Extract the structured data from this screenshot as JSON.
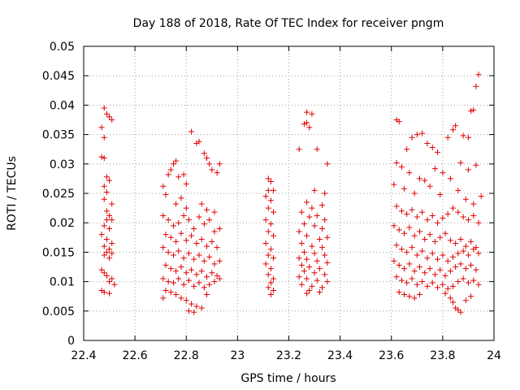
{
  "chart_data": {
    "type": "scatter",
    "title": "Day 188 of 2018, Rate Of TEC Index for receiver pngm",
    "xlabel": "GPS time / hours",
    "ylabel": "ROTI / TECUs",
    "xlim": [
      22.4,
      24
    ],
    "ylim": [
      0,
      0.05
    ],
    "xticks": [
      "22.4",
      "22.6",
      "22.8",
      "23",
      "23.2",
      "23.4",
      "23.6",
      "23.8",
      "24"
    ],
    "yticks": [
      "0",
      "0.005",
      "0.01",
      "0.015",
      "0.02",
      "0.025",
      "0.03",
      "0.035",
      "0.04",
      "0.045",
      "0.05"
    ],
    "grid": true,
    "marker": "+",
    "color": "#e00000",
    "points": [
      [
        22.48,
        0.0395
      ],
      [
        22.49,
        0.0385
      ],
      [
        22.5,
        0.038
      ],
      [
        22.51,
        0.0375
      ],
      [
        22.47,
        0.0362
      ],
      [
        22.48,
        0.0345
      ],
      [
        22.47,
        0.0312
      ],
      [
        22.48,
        0.031
      ],
      [
        22.49,
        0.0278
      ],
      [
        22.5,
        0.0272
      ],
      [
        22.48,
        0.0262
      ],
      [
        22.49,
        0.0252
      ],
      [
        22.48,
        0.024
      ],
      [
        22.51,
        0.0232
      ],
      [
        22.49,
        0.022
      ],
      [
        22.5,
        0.0212
      ],
      [
        22.49,
        0.0205
      ],
      [
        22.51,
        0.0205
      ],
      [
        22.48,
        0.0195
      ],
      [
        22.5,
        0.019
      ],
      [
        22.47,
        0.018
      ],
      [
        22.49,
        0.0172
      ],
      [
        22.51,
        0.0165
      ],
      [
        22.48,
        0.016
      ],
      [
        22.5,
        0.0155
      ],
      [
        22.49,
        0.015
      ],
      [
        22.51,
        0.0148
      ],
      [
        22.48,
        0.0145
      ],
      [
        22.5,
        0.014
      ],
      [
        22.47,
        0.012
      ],
      [
        22.48,
        0.0115
      ],
      [
        22.49,
        0.011
      ],
      [
        22.51,
        0.0105
      ],
      [
        22.5,
        0.01
      ],
      [
        22.52,
        0.0095
      ],
      [
        22.47,
        0.0085
      ],
      [
        22.48,
        0.0082
      ],
      [
        22.5,
        0.008
      ],
      [
        22.71,
        0.0262
      ],
      [
        22.72,
        0.0248
      ],
      [
        22.73,
        0.0282
      ],
      [
        22.74,
        0.029
      ],
      [
        22.75,
        0.03
      ],
      [
        22.76,
        0.0305
      ],
      [
        22.77,
        0.0278
      ],
      [
        22.79,
        0.0282
      ],
      [
        22.8,
        0.0266
      ],
      [
        22.82,
        0.0355
      ],
      [
        22.84,
        0.0335
      ],
      [
        22.85,
        0.0338
      ],
      [
        22.87,
        0.0318
      ],
      [
        22.88,
        0.031
      ],
      [
        22.89,
        0.03
      ],
      [
        22.9,
        0.029
      ],
      [
        22.92,
        0.0285
      ],
      [
        22.93,
        0.03
      ],
      [
        22.78,
        0.0242
      ],
      [
        22.76,
        0.0232
      ],
      [
        22.8,
        0.0225
      ],
      [
        22.86,
        0.0232
      ],
      [
        22.88,
        0.0222
      ],
      [
        22.91,
        0.0218
      ],
      [
        22.71,
        0.0212
      ],
      [
        22.73,
        0.0205
      ],
      [
        22.75,
        0.0195
      ],
      [
        22.77,
        0.02
      ],
      [
        22.79,
        0.0212
      ],
      [
        22.81,
        0.0205
      ],
      [
        22.83,
        0.019
      ],
      [
        22.85,
        0.021
      ],
      [
        22.87,
        0.0198
      ],
      [
        22.89,
        0.0205
      ],
      [
        22.91,
        0.0185
      ],
      [
        22.93,
        0.019
      ],
      [
        22.72,
        0.018
      ],
      [
        22.74,
        0.0175
      ],
      [
        22.76,
        0.0168
      ],
      [
        22.78,
        0.0182
      ],
      [
        22.8,
        0.017
      ],
      [
        22.82,
        0.0178
      ],
      [
        22.84,
        0.0165
      ],
      [
        22.86,
        0.0172
      ],
      [
        22.88,
        0.016
      ],
      [
        22.9,
        0.0168
      ],
      [
        22.92,
        0.0158
      ],
      [
        22.71,
        0.0158
      ],
      [
        22.73,
        0.015
      ],
      [
        22.75,
        0.0145
      ],
      [
        22.77,
        0.0152
      ],
      [
        22.79,
        0.014
      ],
      [
        22.81,
        0.0148
      ],
      [
        22.83,
        0.0138
      ],
      [
        22.85,
        0.0145
      ],
      [
        22.87,
        0.0135
      ],
      [
        22.89,
        0.0142
      ],
      [
        22.91,
        0.013
      ],
      [
        22.93,
        0.0135
      ],
      [
        22.72,
        0.0128
      ],
      [
        22.74,
        0.0122
      ],
      [
        22.76,
        0.0118
      ],
      [
        22.78,
        0.0125
      ],
      [
        22.8,
        0.0115
      ],
      [
        22.82,
        0.012
      ],
      [
        22.84,
        0.0112
      ],
      [
        22.86,
        0.0118
      ],
      [
        22.88,
        0.0108
      ],
      [
        22.9,
        0.0115
      ],
      [
        22.92,
        0.011
      ],
      [
        22.71,
        0.0105
      ],
      [
        22.73,
        0.01
      ],
      [
        22.75,
        0.0098
      ],
      [
        22.77,
        0.0105
      ],
      [
        22.79,
        0.0095
      ],
      [
        22.81,
        0.0102
      ],
      [
        22.83,
        0.0092
      ],
      [
        22.85,
        0.0098
      ],
      [
        22.87,
        0.009
      ],
      [
        22.89,
        0.0095
      ],
      [
        22.91,
        0.01
      ],
      [
        22.93,
        0.0105
      ],
      [
        22.72,
        0.0085
      ],
      [
        22.74,
        0.0082
      ],
      [
        22.76,
        0.0078
      ],
      [
        22.78,
        0.0072
      ],
      [
        22.8,
        0.0068
      ],
      [
        22.82,
        0.0062
      ],
      [
        22.84,
        0.0058
      ],
      [
        22.86,
        0.0055
      ],
      [
        22.81,
        0.005
      ],
      [
        22.83,
        0.0048
      ],
      [
        22.71,
        0.0072
      ],
      [
        22.88,
        0.0078
      ],
      [
        23.12,
        0.0275
      ],
      [
        23.13,
        0.027
      ],
      [
        23.12,
        0.0255
      ],
      [
        23.14,
        0.0255
      ],
      [
        23.11,
        0.0245
      ],
      [
        23.13,
        0.0238
      ],
      [
        23.12,
        0.0225
      ],
      [
        23.14,
        0.0218
      ],
      [
        23.11,
        0.0205
      ],
      [
        23.13,
        0.0198
      ],
      [
        23.12,
        0.0185
      ],
      [
        23.14,
        0.0178
      ],
      [
        23.11,
        0.0165
      ],
      [
        23.13,
        0.0155
      ],
      [
        23.12,
        0.0145
      ],
      [
        23.14,
        0.014
      ],
      [
        23.11,
        0.013
      ],
      [
        23.13,
        0.0122
      ],
      [
        23.12,
        0.0112
      ],
      [
        23.14,
        0.0105
      ],
      [
        23.13,
        0.0098
      ],
      [
        23.12,
        0.009
      ],
      [
        23.14,
        0.0085
      ],
      [
        23.13,
        0.0078
      ],
      [
        23.27,
        0.0388
      ],
      [
        23.29,
        0.0385
      ],
      [
        23.26,
        0.0368
      ],
      [
        23.27,
        0.037
      ],
      [
        23.28,
        0.0362
      ],
      [
        23.24,
        0.0325
      ],
      [
        23.31,
        0.0325
      ],
      [
        23.35,
        0.03
      ],
      [
        23.3,
        0.0255
      ],
      [
        23.34,
        0.025
      ],
      [
        23.27,
        0.0235
      ],
      [
        23.29,
        0.0225
      ],
      [
        23.33,
        0.023
      ],
      [
        23.25,
        0.0218
      ],
      [
        23.28,
        0.021
      ],
      [
        23.31,
        0.0212
      ],
      [
        23.34,
        0.0205
      ],
      [
        23.26,
        0.0198
      ],
      [
        23.3,
        0.0195
      ],
      [
        23.33,
        0.019
      ],
      [
        23.24,
        0.0185
      ],
      [
        23.27,
        0.0178
      ],
      [
        23.32,
        0.0172
      ],
      [
        23.35,
        0.0175
      ],
      [
        23.25,
        0.0165
      ],
      [
        23.29,
        0.016
      ],
      [
        23.33,
        0.0158
      ],
      [
        23.26,
        0.015
      ],
      [
        23.3,
        0.0148
      ],
      [
        23.34,
        0.0145
      ],
      [
        23.24,
        0.014
      ],
      [
        23.27,
        0.0138
      ],
      [
        23.31,
        0.0135
      ],
      [
        23.35,
        0.0132
      ],
      [
        23.25,
        0.0128
      ],
      [
        23.28,
        0.0125
      ],
      [
        23.32,
        0.0122
      ],
      [
        23.26,
        0.0118
      ],
      [
        23.3,
        0.0115
      ],
      [
        23.34,
        0.0112
      ],
      [
        23.24,
        0.0108
      ],
      [
        23.27,
        0.0105
      ],
      [
        23.31,
        0.0102
      ],
      [
        23.35,
        0.01
      ],
      [
        23.25,
        0.0095
      ],
      [
        23.29,
        0.0092
      ],
      [
        23.33,
        0.009
      ],
      [
        23.28,
        0.0085
      ],
      [
        23.32,
        0.0082
      ],
      [
        23.27,
        0.008
      ],
      [
        23.62,
        0.0375
      ],
      [
        23.63,
        0.0372
      ],
      [
        23.68,
        0.0345
      ],
      [
        23.7,
        0.035
      ],
      [
        23.72,
        0.0352
      ],
      [
        23.66,
        0.0325
      ],
      [
        23.74,
        0.0335
      ],
      [
        23.76,
        0.0328
      ],
      [
        23.78,
        0.032
      ],
      [
        23.82,
        0.0345
      ],
      [
        23.84,
        0.0358
      ],
      [
        23.85,
        0.0365
      ],
      [
        23.88,
        0.0348
      ],
      [
        23.9,
        0.0345
      ],
      [
        23.91,
        0.039
      ],
      [
        23.92,
        0.0392
      ],
      [
        23.93,
        0.0432
      ],
      [
        23.94,
        0.0452
      ],
      [
        23.62,
        0.0302
      ],
      [
        23.64,
        0.0295
      ],
      [
        23.67,
        0.0285
      ],
      [
        23.71,
        0.0275
      ],
      [
        23.73,
        0.0272
      ],
      [
        23.77,
        0.0292
      ],
      [
        23.8,
        0.0285
      ],
      [
        23.83,
        0.0275
      ],
      [
        23.87,
        0.0302
      ],
      [
        23.9,
        0.029
      ],
      [
        23.93,
        0.0298
      ],
      [
        23.95,
        0.0245
      ],
      [
        23.61,
        0.0265
      ],
      [
        23.65,
        0.0258
      ],
      [
        23.69,
        0.025
      ],
      [
        23.75,
        0.0262
      ],
      [
        23.79,
        0.0248
      ],
      [
        23.86,
        0.0255
      ],
      [
        23.89,
        0.024
      ],
      [
        23.92,
        0.0232
      ],
      [
        23.62,
        0.0228
      ],
      [
        23.64,
        0.022
      ],
      [
        23.66,
        0.0215
      ],
      [
        23.68,
        0.0222
      ],
      [
        23.7,
        0.021
      ],
      [
        23.72,
        0.0218
      ],
      [
        23.74,
        0.0205
      ],
      [
        23.76,
        0.0212
      ],
      [
        23.78,
        0.02
      ],
      [
        23.8,
        0.0208
      ],
      [
        23.82,
        0.0215
      ],
      [
        23.84,
        0.0225
      ],
      [
        23.86,
        0.0218
      ],
      [
        23.88,
        0.021
      ],
      [
        23.9,
        0.0205
      ],
      [
        23.92,
        0.0212
      ],
      [
        23.94,
        0.02
      ],
      [
        23.61,
        0.0195
      ],
      [
        23.63,
        0.0188
      ],
      [
        23.65,
        0.0182
      ],
      [
        23.67,
        0.0192
      ],
      [
        23.69,
        0.0178
      ],
      [
        23.71,
        0.0185
      ],
      [
        23.73,
        0.0172
      ],
      [
        23.75,
        0.018
      ],
      [
        23.77,
        0.0168
      ],
      [
        23.79,
        0.0175
      ],
      [
        23.81,
        0.0182
      ],
      [
        23.83,
        0.017
      ],
      [
        23.85,
        0.0165
      ],
      [
        23.87,
        0.0172
      ],
      [
        23.89,
        0.016
      ],
      [
        23.91,
        0.0168
      ],
      [
        23.93,
        0.0158
      ],
      [
        23.62,
        0.0162
      ],
      [
        23.64,
        0.0155
      ],
      [
        23.66,
        0.015
      ],
      [
        23.68,
        0.0158
      ],
      [
        23.7,
        0.0145
      ],
      [
        23.72,
        0.0152
      ],
      [
        23.74,
        0.014
      ],
      [
        23.76,
        0.0148
      ],
      [
        23.78,
        0.0138
      ],
      [
        23.8,
        0.0145
      ],
      [
        23.82,
        0.0135
      ],
      [
        23.84,
        0.0142
      ],
      [
        23.86,
        0.0148
      ],
      [
        23.88,
        0.0152
      ],
      [
        23.9,
        0.0145
      ],
      [
        23.92,
        0.0155
      ],
      [
        23.94,
        0.0148
      ],
      [
        23.61,
        0.0135
      ],
      [
        23.63,
        0.0128
      ],
      [
        23.65,
        0.0122
      ],
      [
        23.67,
        0.013
      ],
      [
        23.69,
        0.0118
      ],
      [
        23.71,
        0.0125
      ],
      [
        23.73,
        0.0115
      ],
      [
        23.75,
        0.0122
      ],
      [
        23.77,
        0.0112
      ],
      [
        23.79,
        0.012
      ],
      [
        23.81,
        0.011
      ],
      [
        23.83,
        0.0118
      ],
      [
        23.85,
        0.0125
      ],
      [
        23.87,
        0.013
      ],
      [
        23.89,
        0.0122
      ],
      [
        23.91,
        0.0128
      ],
      [
        23.93,
        0.012
      ],
      [
        23.62,
        0.0108
      ],
      [
        23.64,
        0.0102
      ],
      [
        23.66,
        0.0098
      ],
      [
        23.68,
        0.0105
      ],
      [
        23.7,
        0.0095
      ],
      [
        23.72,
        0.01
      ],
      [
        23.74,
        0.0092
      ],
      [
        23.76,
        0.0098
      ],
      [
        23.78,
        0.009
      ],
      [
        23.8,
        0.0095
      ],
      [
        23.82,
        0.0088
      ],
      [
        23.84,
        0.0092
      ],
      [
        23.86,
        0.01
      ],
      [
        23.88,
        0.0105
      ],
      [
        23.9,
        0.0098
      ],
      [
        23.92,
        0.0102
      ],
      [
        23.94,
        0.0095
      ],
      [
        23.63,
        0.0082
      ],
      [
        23.65,
        0.0078
      ],
      [
        23.67,
        0.0075
      ],
      [
        23.69,
        0.0072
      ],
      [
        23.71,
        0.0078
      ],
      [
        23.81,
        0.008
      ],
      [
        23.83,
        0.0072
      ],
      [
        23.84,
        0.0065
      ],
      [
        23.85,
        0.0055
      ],
      [
        23.86,
        0.0052
      ],
      [
        23.87,
        0.0048
      ],
      [
        23.89,
        0.0068
      ],
      [
        23.91,
        0.0075
      ]
    ]
  }
}
